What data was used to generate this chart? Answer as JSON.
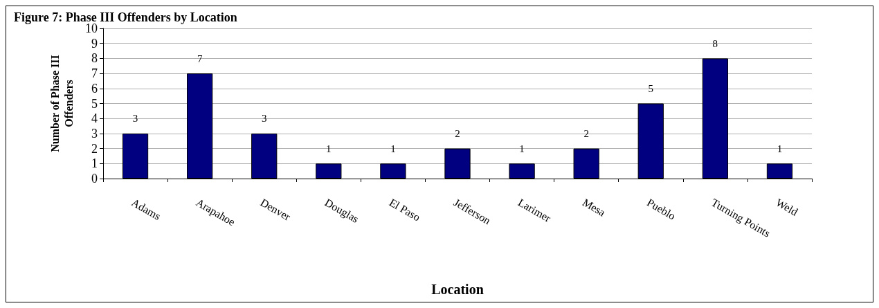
{
  "chart_data": {
    "type": "bar",
    "title": "Figure 7: Phase III Offenders by Location",
    "xlabel": "Location",
    "ylabel": "Number of Phase III Offenders",
    "categories": [
      "Adams",
      "Arapahoe",
      "Denver",
      "Douglas",
      "El Paso",
      "Jefferson",
      "Larimer",
      "Mesa",
      "Pueblo",
      "Turning Points",
      "Weld"
    ],
    "values": [
      3,
      7,
      3,
      1,
      1,
      2,
      1,
      2,
      5,
      8,
      1
    ],
    "color": "#000080",
    "ylim": [
      0,
      10
    ],
    "yticks": [
      0,
      1,
      2,
      3,
      4,
      5,
      6,
      7,
      8,
      9,
      10
    ],
    "grid": "y",
    "data_labels": true
  }
}
